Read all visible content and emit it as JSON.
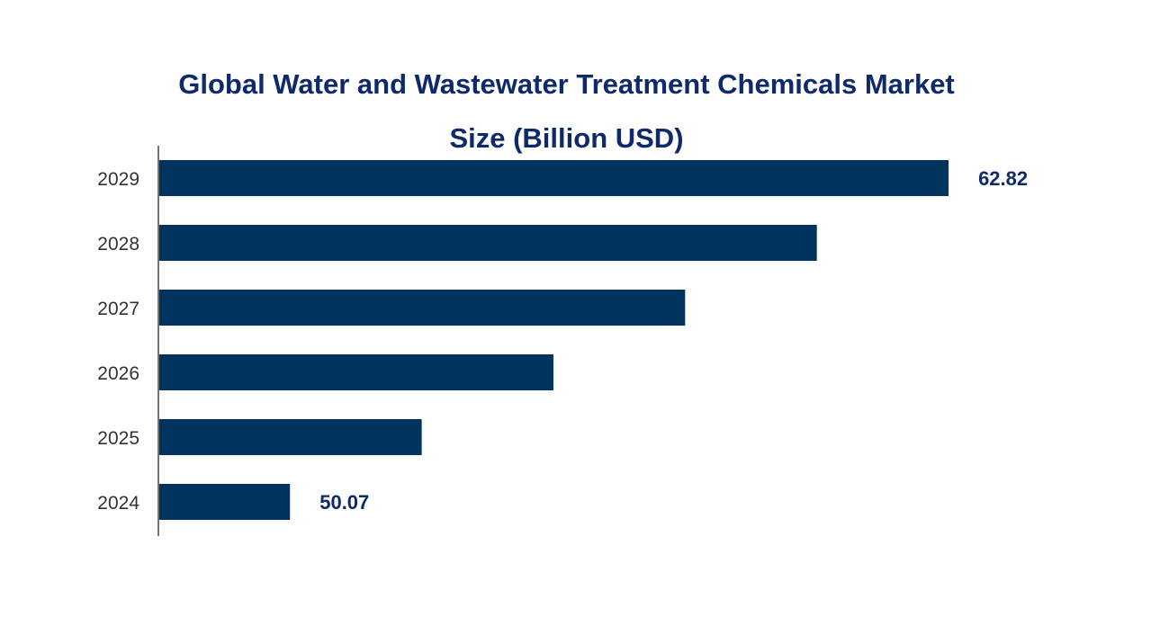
{
  "chart_data": {
    "type": "bar",
    "orientation": "horizontal",
    "title_lines": [
      "Global Water and Wastewater Treatment Chemicals Market",
      "Size (Billion USD)"
    ],
    "categories": [
      "2029",
      "2028",
      "2027",
      "2026",
      "2025",
      "2024"
    ],
    "values": [
      62.82,
      60.27,
      57.72,
      55.17,
      52.62,
      50.07
    ],
    "data_labels": [
      {
        "category": "2029",
        "text": "62.82"
      },
      {
        "category": "2024",
        "text": "50.07"
      }
    ],
    "xlim": [
      47.5,
      63
    ],
    "xlabel": "",
    "ylabel": "",
    "grid": false,
    "legend": "none",
    "colors": {
      "bar": "#00345f",
      "title": "#0f2a6b",
      "data_label": "#0f2a6b",
      "tick_label": "#333333",
      "axis": "#444444"
    }
  }
}
